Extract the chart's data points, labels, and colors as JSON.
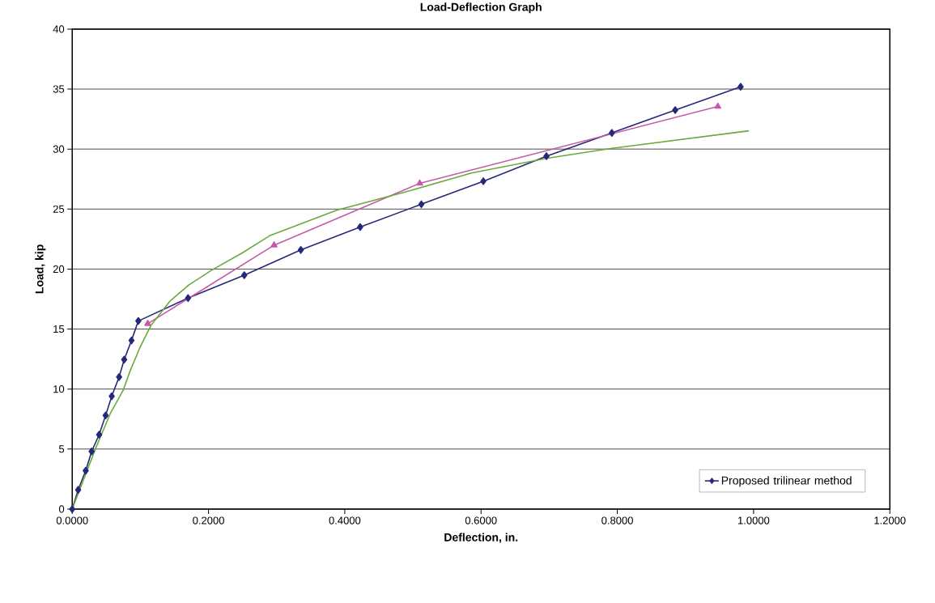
{
  "chart_data": {
    "type": "line",
    "title": "Load-Deflection Graph",
    "xlabel": "Deflection, in.",
    "ylabel": "Load, kip",
    "xlim": [
      0,
      1.2
    ],
    "ylim": [
      0,
      40
    ],
    "xticks": [
      {
        "value": 0,
        "label": "0.0000"
      },
      {
        "value": 0.2,
        "label": "0.2000"
      },
      {
        "value": 0.4,
        "label": "0.4000"
      },
      {
        "value": 0.6,
        "label": "0.6000"
      },
      {
        "value": 0.8,
        "label": "0.8000"
      },
      {
        "value": 1.0,
        "label": "1.0000"
      },
      {
        "value": 1.2,
        "label": "1.2000"
      }
    ],
    "yticks": [
      0,
      5,
      10,
      15,
      20,
      25,
      30,
      35,
      40
    ],
    "grid": "y",
    "legend": "bottom right",
    "line_style": "solid",
    "series": [
      {
        "name": "Proposed trilinear method",
        "color": "#26287a",
        "marker": "diamond",
        "x": [
          0,
          0.0087,
          0.0198,
          0.0285,
          0.0395,
          0.049,
          0.058,
          0.0688,
          0.0763,
          0.087,
          0.097,
          0.17,
          0.2525,
          0.3355,
          0.4226,
          0.5124,
          0.6034,
          0.696,
          0.792,
          0.885,
          0.981
        ],
        "values": [
          0,
          1.6,
          3.2,
          4.8,
          6.2,
          7.8,
          9.4,
          11.0,
          12.45,
          14.05,
          15.67,
          17.58,
          19.49,
          21.59,
          23.5,
          25.4,
          27.32,
          29.41,
          31.35,
          33.25,
          35.19
        ]
      },
      {
        "color": "#c45aa8",
        "marker": "triangle",
        "x": [
          0.1108,
          0.2963,
          0.51,
          0.9476
        ],
        "values": [
          15.45,
          21.99,
          27.14,
          33.55
        ]
      },
      {
        "color": "#6aaa3a",
        "marker": "none",
        "x": [
          0,
          0.0344,
          0.0562,
          0.0748,
          0.0847,
          0.0997,
          0.1155,
          0.143,
          0.171,
          0.2045,
          0.25,
          0.2896,
          0.388,
          0.4874,
          0.586,
          0.697,
          0.792,
          0.993
        ],
        "values": [
          0,
          5.06,
          8.0,
          9.9,
          11.47,
          13.5,
          15.3,
          17.3,
          18.67,
          19.9,
          21.36,
          22.77,
          24.9,
          26.4,
          28.0,
          29.23,
          30.06,
          31.52
        ]
      }
    ]
  }
}
